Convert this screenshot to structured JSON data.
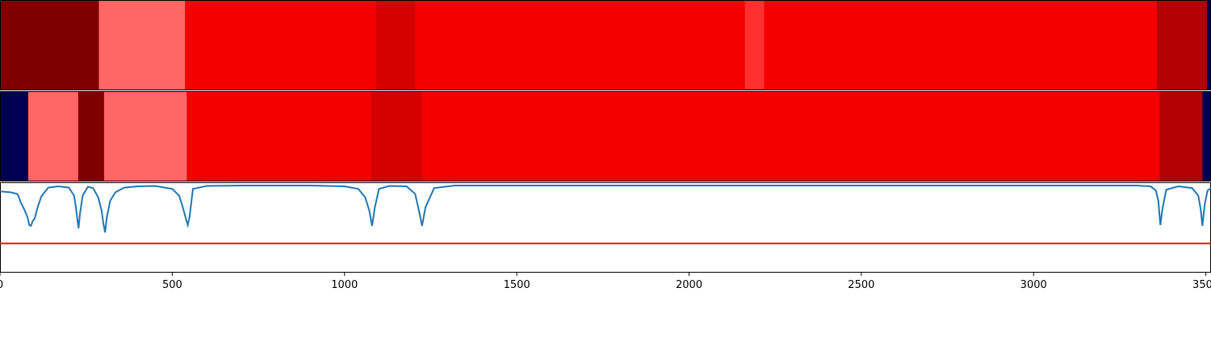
{
  "chart_data": [
    {
      "type": "heatmap",
      "xlim": [
        0,
        3515
      ],
      "segments": [
        {
          "start": 0,
          "end": 287,
          "color": "#7f0000"
        },
        {
          "start": 287,
          "end": 537,
          "color": "#ff6666"
        },
        {
          "start": 537,
          "end": 1092,
          "color": "#f50000"
        },
        {
          "start": 1092,
          "end": 1205,
          "color": "#d50000"
        },
        {
          "start": 1205,
          "end": 2162,
          "color": "#f50000"
        },
        {
          "start": 2162,
          "end": 2218,
          "color": "#ff3030"
        },
        {
          "start": 2218,
          "end": 3358,
          "color": "#f50000"
        },
        {
          "start": 3358,
          "end": 3503,
          "color": "#b40000"
        },
        {
          "start": 3503,
          "end": 3515,
          "color": "#000050"
        }
      ]
    },
    {
      "type": "heatmap",
      "xlim": [
        0,
        3515
      ],
      "segments": [
        {
          "start": 0,
          "end": 82,
          "color": "#000050"
        },
        {
          "start": 82,
          "end": 227,
          "color": "#ff6666"
        },
        {
          "start": 227,
          "end": 302,
          "color": "#7f0000"
        },
        {
          "start": 302,
          "end": 542,
          "color": "#ff6666"
        },
        {
          "start": 542,
          "end": 1078,
          "color": "#f50000"
        },
        {
          "start": 1078,
          "end": 1225,
          "color": "#d50000"
        },
        {
          "start": 1225,
          "end": 3366,
          "color": "#f50000"
        },
        {
          "start": 3366,
          "end": 3490,
          "color": "#b40000"
        },
        {
          "start": 3490,
          "end": 3515,
          "color": "#000050"
        }
      ]
    },
    {
      "type": "line",
      "xlim": [
        0,
        3515
      ],
      "ylim": [
        0,
        1
      ],
      "xticks": [
        0,
        500,
        1000,
        1500,
        2000,
        2500,
        3000,
        3500
      ],
      "xtick_labels": [
        "0",
        "500",
        "1000",
        "1500",
        "2000",
        "2500",
        "3000",
        "3500"
      ],
      "threshold": {
        "value": 0.31,
        "color": "#ee1111"
      },
      "line_color": "#1f77b4",
      "series": [
        {
          "x": [
            0,
            30,
            50,
            55,
            60,
            70,
            80,
            85,
            90,
            95,
            100,
            110,
            120,
            140,
            170,
            200,
            215,
            220,
            225,
            228,
            232,
            240,
            255,
            270,
            285,
            295,
            300,
            305,
            310,
            320,
            335,
            360,
            400,
            450,
            500,
            520,
            530,
            540,
            545,
            550,
            560,
            600,
            700,
            800,
            900,
            1000,
            1040,
            1060,
            1072,
            1080,
            1088,
            1100,
            1130,
            1180,
            1205,
            1215,
            1225,
            1235,
            1260,
            1320,
            1500,
            2000,
            2500,
            3000,
            3300,
            3340,
            3355,
            3362,
            3368,
            3374,
            3385,
            3420,
            3460,
            3478,
            3485,
            3490,
            3497,
            3505,
            3515
          ],
          "y": [
            0.93,
            0.92,
            0.9,
            0.86,
            0.8,
            0.72,
            0.62,
            0.53,
            0.52,
            0.58,
            0.6,
            0.75,
            0.87,
            0.975,
            0.99,
            0.975,
            0.88,
            0.75,
            0.58,
            0.49,
            0.66,
            0.88,
            0.985,
            0.97,
            0.86,
            0.7,
            0.55,
            0.44,
            0.62,
            0.82,
            0.92,
            0.975,
            0.99,
            0.995,
            0.96,
            0.88,
            0.75,
            0.6,
            0.53,
            0.62,
            0.96,
            0.995,
            1.0,
            1.0,
            1.0,
            0.99,
            0.96,
            0.86,
            0.7,
            0.52,
            0.74,
            0.96,
            0.995,
            0.99,
            0.9,
            0.72,
            0.52,
            0.74,
            0.97,
            1.0,
            1.0,
            1.0,
            1.0,
            1.0,
            1.0,
            0.99,
            0.94,
            0.82,
            0.53,
            0.72,
            0.95,
            0.99,
            0.97,
            0.88,
            0.72,
            0.52,
            0.78,
            0.94,
            0.97
          ]
        }
      ]
    }
  ]
}
